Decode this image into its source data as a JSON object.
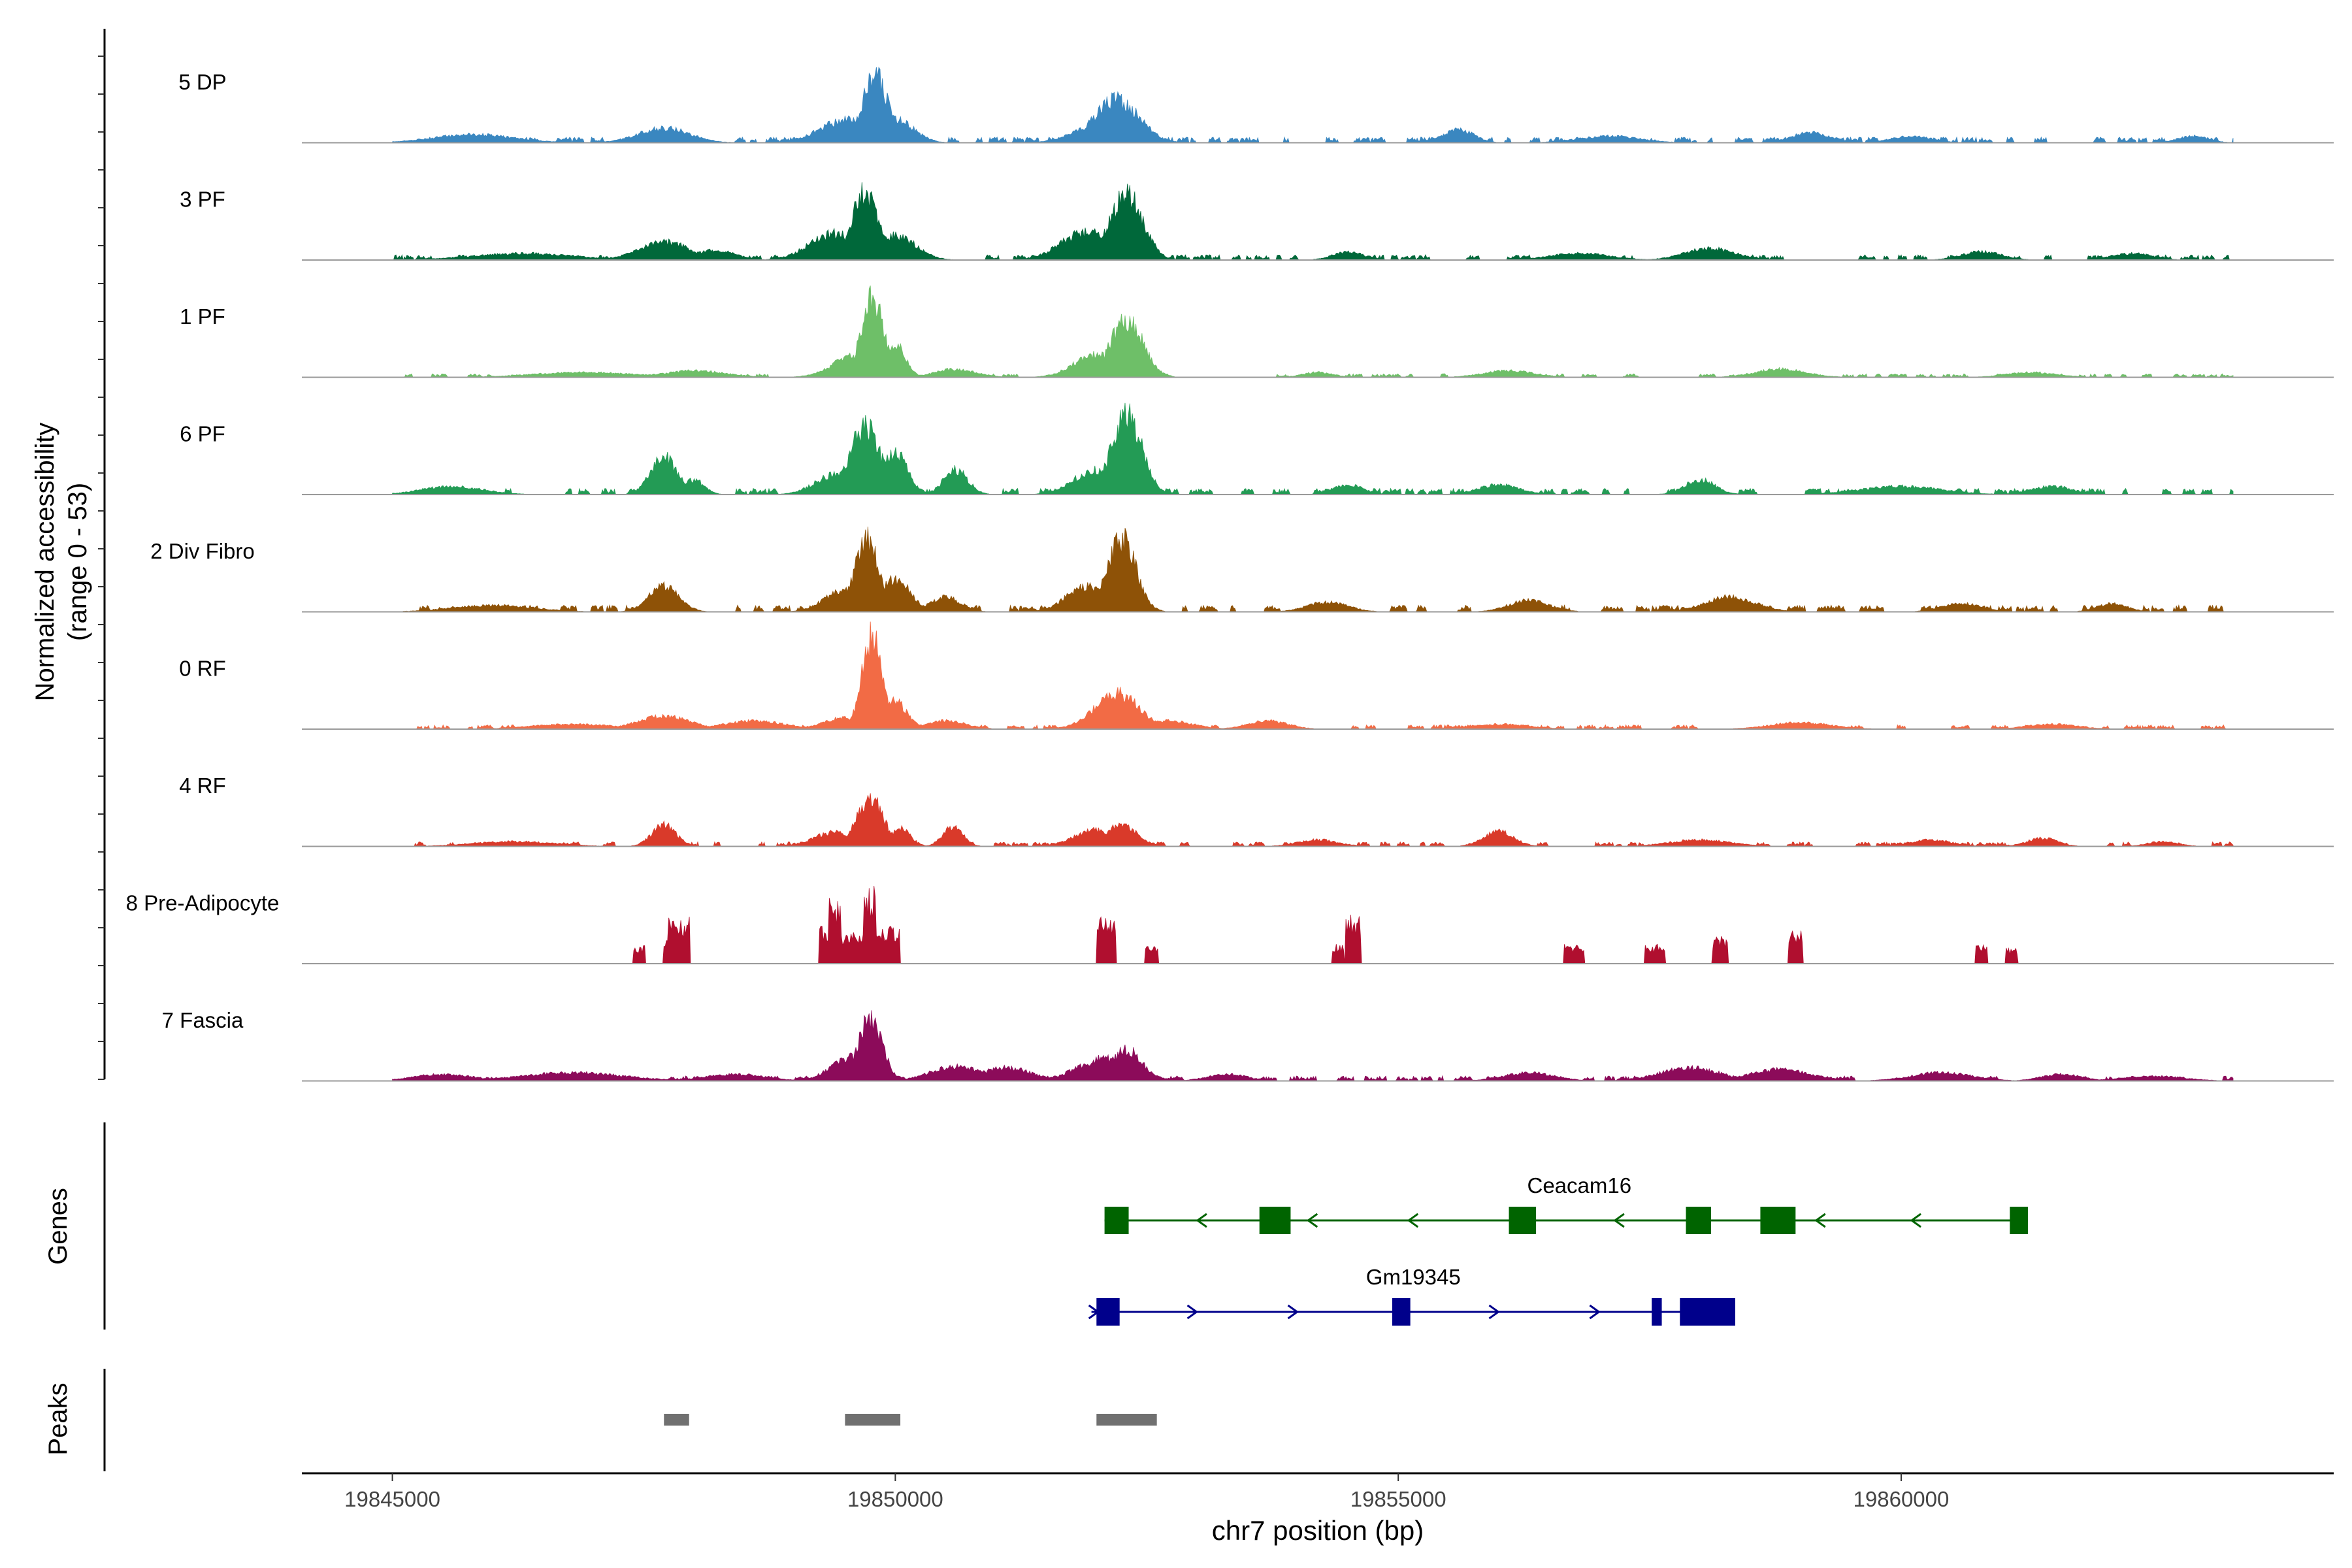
{
  "chart_data": {
    "type": "area",
    "title": "",
    "ylabel": "Normalized accessibility",
    "ylabel_range": "(range 0 - 53)",
    "ylim": [
      0,
      53
    ],
    "xlabel": "chr7 position (bp)",
    "xlim": [
      19844100,
      19864300
    ],
    "x_ticks": [
      19845000,
      19850000,
      19855000,
      19860000
    ],
    "x_tick_labels": [
      "19845000",
      "19850000",
      "19855000",
      "19860000"
    ],
    "region_start": 19845000,
    "region_end": 19863300,
    "baseline_color": "#9a9a9a",
    "tracks": [
      {
        "name": "5 DP",
        "color": "#3a87c0",
        "noise": 2.4,
        "seed": 11,
        "peaks": [
          [
            19845800,
            400,
            5
          ],
          [
            19847700,
            250,
            9
          ],
          [
            19849500,
            250,
            14
          ],
          [
            19849800,
            130,
            40
          ],
          [
            19850000,
            180,
            14
          ],
          [
            19852200,
            220,
            26
          ],
          [
            19851900,
            200,
            8
          ],
          [
            19855600,
            150,
            8
          ],
          [
            19857100,
            300,
            4
          ],
          [
            19859100,
            200,
            6
          ],
          [
            19860100,
            200,
            4
          ],
          [
            19862900,
            150,
            4
          ]
        ]
      },
      {
        "name": "3 PF",
        "color": "#00683a",
        "noise": 2.2,
        "seed": 23,
        "peaks": [
          [
            19846300,
            500,
            4
          ],
          [
            19847700,
            250,
            11
          ],
          [
            19848200,
            200,
            6
          ],
          [
            19849400,
            250,
            16
          ],
          [
            19849700,
            130,
            41
          ],
          [
            19850000,
            200,
            15
          ],
          [
            19851900,
            250,
            17
          ],
          [
            19852300,
            160,
            41
          ],
          [
            19854500,
            150,
            5
          ],
          [
            19856800,
            300,
            4
          ],
          [
            19858100,
            250,
            7
          ],
          [
            19860800,
            200,
            5
          ],
          [
            19862300,
            200,
            4
          ]
        ]
      },
      {
        "name": "1 PF",
        "color": "#6ebf68",
        "noise": 1.5,
        "seed": 37,
        "peaks": [
          [
            19846900,
            500,
            3
          ],
          [
            19848000,
            300,
            4
          ],
          [
            19849600,
            220,
            13
          ],
          [
            19849770,
            110,
            48
          ],
          [
            19850000,
            100,
            21
          ],
          [
            19850600,
            200,
            5
          ],
          [
            19852000,
            220,
            14
          ],
          [
            19852300,
            160,
            35
          ],
          [
            19854200,
            150,
            3
          ],
          [
            19856100,
            250,
            4
          ],
          [
            19858800,
            250,
            5
          ],
          [
            19861300,
            250,
            3
          ]
        ]
      },
      {
        "name": "6 PF",
        "color": "#239b55",
        "noise": 2.6,
        "seed": 41,
        "peaks": [
          [
            19845600,
            300,
            5
          ],
          [
            19847700,
            130,
            23
          ],
          [
            19848000,
            100,
            9
          ],
          [
            19849400,
            200,
            12
          ],
          [
            19849700,
            150,
            41
          ],
          [
            19850000,
            120,
            26
          ],
          [
            19850600,
            120,
            15
          ],
          [
            19852000,
            220,
            15
          ],
          [
            19852300,
            150,
            48
          ],
          [
            19854500,
            150,
            6
          ],
          [
            19856000,
            200,
            6
          ],
          [
            19858000,
            150,
            9
          ],
          [
            19860000,
            400,
            5
          ],
          [
            19861500,
            200,
            5
          ]
        ]
      },
      {
        "name": "2 Div Fibro",
        "color": "#8e5207",
        "noise": 2.8,
        "seed": 53,
        "peaks": [
          [
            19846000,
            400,
            4
          ],
          [
            19847700,
            150,
            16
          ],
          [
            19849500,
            200,
            13
          ],
          [
            19849720,
            120,
            44
          ],
          [
            19850000,
            150,
            20
          ],
          [
            19850500,
            150,
            9
          ],
          [
            19851900,
            200,
            15
          ],
          [
            19852250,
            140,
            45
          ],
          [
            19854300,
            200,
            6
          ],
          [
            19856300,
            200,
            7
          ],
          [
            19858300,
            250,
            9
          ],
          [
            19860600,
            200,
            5
          ],
          [
            19862100,
            150,
            5
          ]
        ]
      },
      {
        "name": "0 RF",
        "color": "#f26b45",
        "noise": 1.8,
        "seed": 67,
        "peaks": [
          [
            19846800,
            400,
            3
          ],
          [
            19847700,
            250,
            8
          ],
          [
            19848600,
            300,
            5
          ],
          [
            19849500,
            200,
            7
          ],
          [
            19849770,
            100,
            56
          ],
          [
            19850000,
            120,
            17
          ],
          [
            19850500,
            200,
            5
          ],
          [
            19852200,
            220,
            22
          ],
          [
            19852700,
            250,
            5
          ],
          [
            19853700,
            200,
            5
          ],
          [
            19856000,
            300,
            3
          ],
          [
            19859000,
            300,
            4
          ],
          [
            19861500,
            250,
            3
          ]
        ]
      },
      {
        "name": "4 RF",
        "color": "#d93a2a",
        "noise": 1.9,
        "seed": 79,
        "peaks": [
          [
            19846200,
            400,
            3
          ],
          [
            19847700,
            120,
            13
          ],
          [
            19849400,
            200,
            9
          ],
          [
            19849750,
            130,
            30
          ],
          [
            19850050,
            100,
            11
          ],
          [
            19850570,
            100,
            12
          ],
          [
            19852000,
            220,
            10
          ],
          [
            19852250,
            150,
            13
          ],
          [
            19854200,
            200,
            4
          ],
          [
            19856000,
            150,
            9
          ],
          [
            19858000,
            300,
            4
          ],
          [
            19860300,
            200,
            4
          ],
          [
            19861400,
            150,
            5
          ],
          [
            19862600,
            150,
            3
          ]
        ]
      },
      {
        "name": "8 Pre-Adipocyte",
        "color": "#b00f2f",
        "noise": 0.9,
        "seed": 91,
        "spiky": true,
        "peaks": [
          [
            19847450,
            60,
            10
          ],
          [
            19847750,
            60,
            15
          ],
          [
            19847850,
            110,
            24
          ],
          [
            19849300,
            60,
            20
          ],
          [
            19849400,
            60,
            34
          ],
          [
            19849600,
            200,
            17
          ],
          [
            19849750,
            60,
            40
          ],
          [
            19849900,
            150,
            20
          ],
          [
            19852100,
            100,
            24
          ],
          [
            19852550,
            70,
            10
          ],
          [
            19854400,
            60,
            10
          ],
          [
            19854550,
            80,
            25
          ],
          [
            19856750,
            100,
            10
          ],
          [
            19857550,
            100,
            10
          ],
          [
            19858200,
            80,
            14
          ],
          [
            19858950,
            70,
            18
          ],
          [
            19860800,
            60,
            11
          ],
          [
            19861100,
            60,
            8
          ]
        ]
      },
      {
        "name": "7 Fascia",
        "color": "#8c0b5a",
        "noise": 2.1,
        "seed": 103,
        "peaks": [
          [
            19845500,
            300,
            4
          ],
          [
            19846800,
            500,
            5
          ],
          [
            19848400,
            300,
            4
          ],
          [
            19849600,
            220,
            15
          ],
          [
            19849750,
            120,
            38
          ],
          [
            19850600,
            250,
            9
          ],
          [
            19851100,
            250,
            8
          ],
          [
            19852100,
            280,
            14
          ],
          [
            19852300,
            150,
            19
          ],
          [
            19853300,
            200,
            4
          ],
          [
            19856300,
            250,
            5
          ],
          [
            19857900,
            300,
            8
          ],
          [
            19858800,
            300,
            7
          ],
          [
            19860400,
            300,
            5
          ],
          [
            19861600,
            200,
            4
          ],
          [
            19862500,
            300,
            3
          ]
        ]
      }
    ],
    "genes_label": "Genes",
    "genes": [
      {
        "name": "Ceacam16",
        "strand": "-",
        "color": "#006400",
        "start": 19852080,
        "end": 19861260,
        "label_x": 19856800,
        "exons": [
          [
            19852080,
            19852320
          ],
          [
            19853620,
            19853930
          ],
          [
            19856100,
            19856370
          ],
          [
            19857860,
            19858110
          ],
          [
            19858600,
            19858950
          ],
          [
            19861080,
            19861260
          ]
        ],
        "arrows": [
          19853050,
          19854150,
          19855150,
          19857200,
          19859200,
          19860150
        ]
      },
      {
        "name": "Gm19345",
        "strand": "+",
        "color": "#00008b",
        "start": 19851950,
        "end": 19858350,
        "label_x": 19855150,
        "exons": [
          [
            19852000,
            19852230
          ],
          [
            19854940,
            19855120
          ],
          [
            19857520,
            19857620
          ],
          [
            19857800,
            19858350
          ]
        ],
        "arrows": [
          19851970,
          19852950,
          19853950,
          19855950,
          19856950
        ]
      }
    ],
    "peaks_label": "Peaks",
    "peak_color": "#707070",
    "peak_regions": [
      [
        19847700,
        19847950
      ],
      [
        19849500,
        19850050
      ],
      [
        19852000,
        19852600
      ]
    ]
  }
}
